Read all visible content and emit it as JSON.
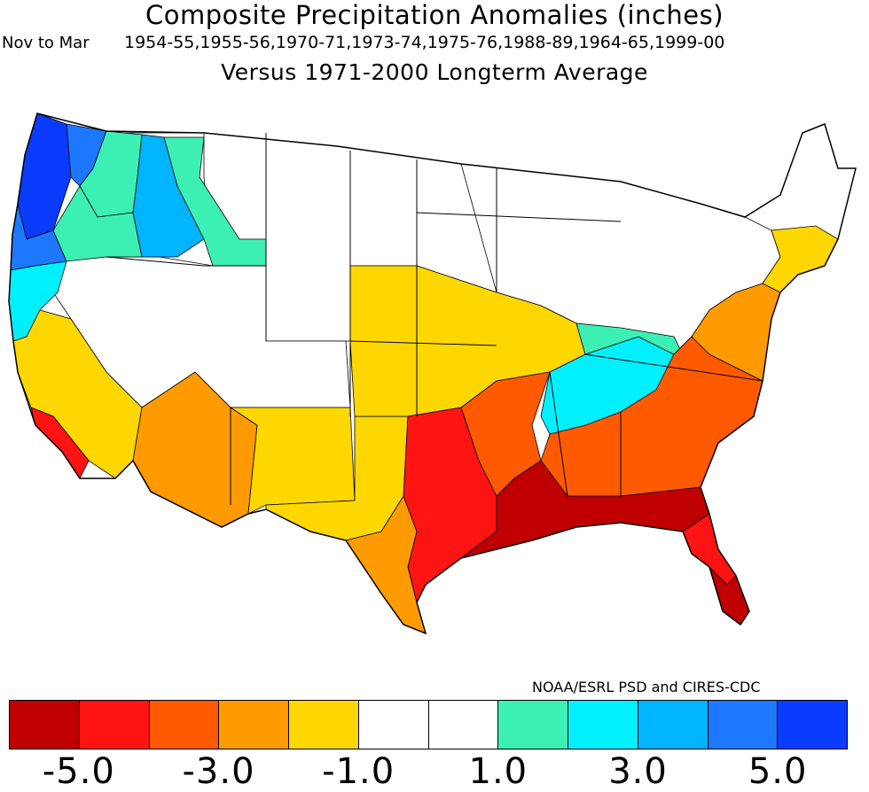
{
  "header": {
    "title": "Composite Precipitation Anomalies (inches)",
    "period": "Nov to Mar",
    "seasons": "1954-55,1955-56,1970-71,1973-74,1975-76,1988-89,1964-65,1999-00",
    "subtitle": "Versus 1971-2000 Longterm Average"
  },
  "credit": "NOAA/ESRL PSD and CIRES-CDC",
  "legend": {
    "colors": [
      "#c00000",
      "#ff1414",
      "#ff5a00",
      "#ff9b00",
      "#ffd700",
      "#ffffff",
      "#ffffff",
      "#3cf0b4",
      "#00f0ff",
      "#00b4ff",
      "#1e78ff",
      "#0a3cff"
    ],
    "ticks": [
      {
        "label": "-5.0",
        "pos": 1
      },
      {
        "label": "-3.0",
        "pos": 3
      },
      {
        "label": "-1.0",
        "pos": 5
      },
      {
        "label": "1.0",
        "pos": 7
      },
      {
        "label": "3.0",
        "pos": 9
      },
      {
        "label": "5.0",
        "pos": 11
      }
    ]
  },
  "regions": [
    {
      "name": "washington-coast",
      "color": "#0a3cff"
    },
    {
      "name": "oregon-coast",
      "color": "#1e78ff"
    },
    {
      "name": "puget-sound",
      "color": "#1e78ff"
    },
    {
      "name": "north-california-coast",
      "color": "#00f0ff"
    },
    {
      "name": "eastern-washington",
      "color": "#3cf0b4"
    },
    {
      "name": "northern-idaho",
      "color": "#00b4ff"
    },
    {
      "name": "western-montana",
      "color": "#3cf0b4"
    },
    {
      "name": "central-oregon",
      "color": "#3cf0b4"
    },
    {
      "name": "northern-rockies-plains",
      "color": "#ffffff"
    },
    {
      "name": "great-basin",
      "color": "#ffffff"
    },
    {
      "name": "central-california",
      "color": "#ffd700"
    },
    {
      "name": "southern-california",
      "color": "#ff1414"
    },
    {
      "name": "arizona",
      "color": "#ff9b00"
    },
    {
      "name": "new-mexico",
      "color": "#ffd700"
    },
    {
      "name": "west-texas",
      "color": "#ffd700"
    },
    {
      "name": "central-plains",
      "color": "#ffd700"
    },
    {
      "name": "south-texas",
      "color": "#ff9b00"
    },
    {
      "name": "east-texas",
      "color": "#ff1414"
    },
    {
      "name": "lower-mississippi",
      "color": "#ff5a00"
    },
    {
      "name": "gulf-coast",
      "color": "#c00000"
    },
    {
      "name": "tennessee-kentucky",
      "color": "#00f0ff"
    },
    {
      "name": "ohio-valley",
      "color": "#3cf0b4"
    },
    {
      "name": "southeast",
      "color": "#ff5a00"
    },
    {
      "name": "florida-peninsula",
      "color": "#ff1414"
    },
    {
      "name": "south-florida",
      "color": "#c00000"
    },
    {
      "name": "mid-atlantic",
      "color": "#ff9b00"
    },
    {
      "name": "northeast",
      "color": "#ffd700"
    },
    {
      "name": "great-lakes",
      "color": "#ffffff"
    }
  ]
}
